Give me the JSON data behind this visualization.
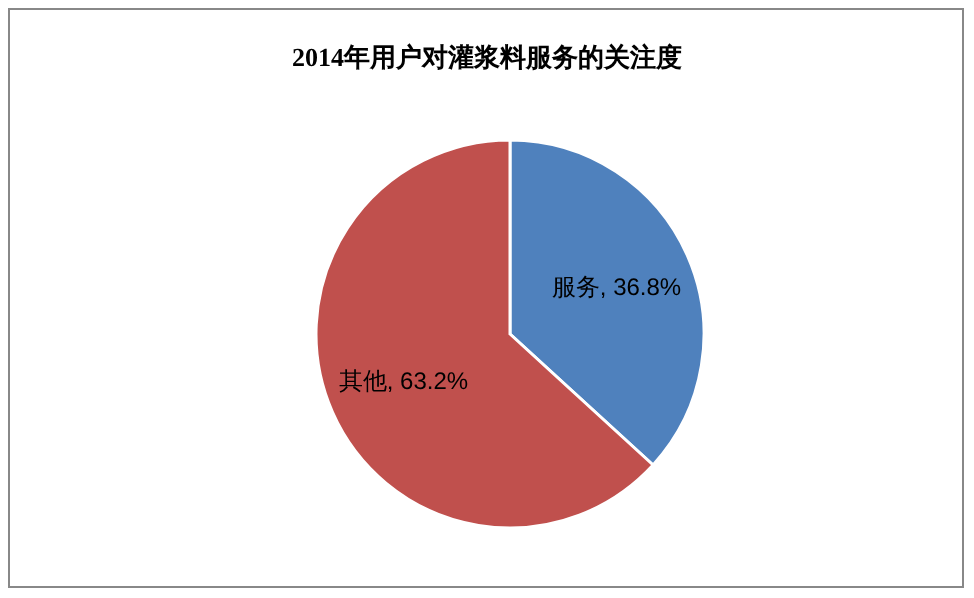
{
  "chart_data": {
    "type": "pie",
    "title": "2014年用户对灌浆料服务的关注度",
    "categories": [
      "服务",
      "其他"
    ],
    "values": [
      36.8,
      63.2
    ],
    "colors": [
      "#4f81bd",
      "#c0504d"
    ],
    "value_labels": [
      ", 36.8%",
      ", 63.2%"
    ],
    "legend": false
  }
}
